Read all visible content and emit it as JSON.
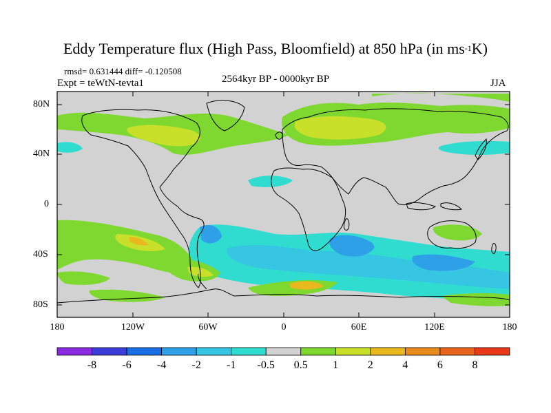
{
  "figure": {
    "title": "Eddy Temperature flux (High Pass, Bloomfield) at 850 hPa (in ms",
    "title_sup": "-1",
    "title_end": "K)",
    "stats": "rmsd= 0.631444 diff= -0.120508",
    "experiment": "Expt = teWtN-tevta1",
    "period": "2564kyr BP - 0000kyr BP",
    "season": "JJA"
  },
  "axes": {
    "lat_labels": [
      "80N",
      "40N",
      "0",
      "40S",
      "80S"
    ],
    "lon_labels": [
      "180",
      "120W",
      "60W",
      "0",
      "60E",
      "120E",
      "180"
    ]
  },
  "colorbar": {
    "labels": [
      "-8",
      "-6",
      "-4",
      "-2",
      "-1",
      "-0.5",
      "0.5",
      "1",
      "2",
      "4",
      "6",
      "8"
    ],
    "colors": [
      "#8a2be2",
      "#3c3cd8",
      "#1a6ee6",
      "#2ea0e8",
      "#36c6e4",
      "#30dcd0",
      "#d2d2d2",
      "#7ed830",
      "#c8e02a",
      "#e8b81e",
      "#e88a1c",
      "#e8641a",
      "#e83a18"
    ]
  },
  "colors": {
    "background_land_ocean": "#d2d2d2",
    "positive_light": "#7ed830",
    "positive_mid": "#c8e02a",
    "positive_high": "#e8b81e",
    "negative_light": "#30dcd0",
    "negative_mid": "#36c6e4",
    "negative_high": "#2ea0e8",
    "coastline": "#000000"
  }
}
